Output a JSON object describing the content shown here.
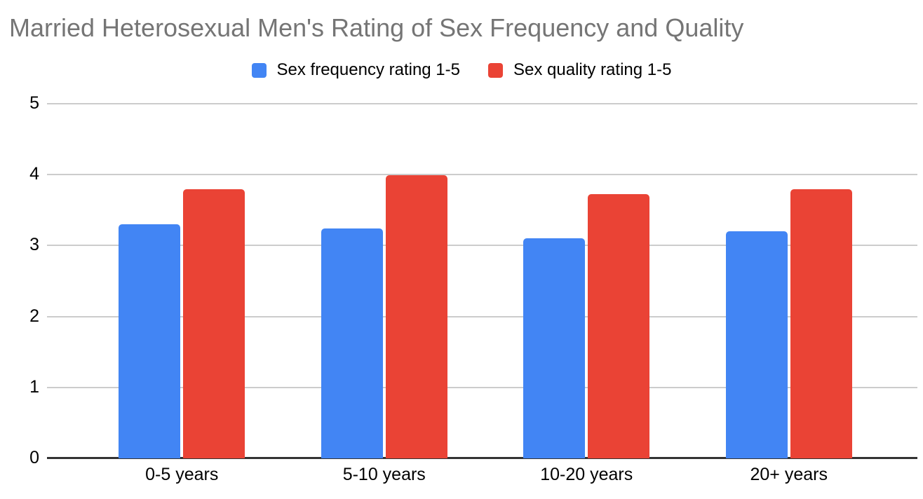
{
  "title": "Married Heterosexual Men's Rating of Sex Frequency and Quality",
  "title_color": "#757575",
  "chart_data": {
    "type": "bar",
    "categories": [
      "0-5 years",
      "5-10 years",
      "10-20 years",
      "20+ years"
    ],
    "series": [
      {
        "name": "Sex frequency rating 1-5",
        "color": "#4285F4",
        "values": [
          3.3,
          3.24,
          3.1,
          3.2
        ]
      },
      {
        "name": "Sex quality rating 1-5",
        "color": "#EA4335",
        "values": [
          3.79,
          3.99,
          3.73,
          3.79
        ]
      }
    ],
    "title": "Married Heterosexual Men's Rating of Sex Frequency and Quality",
    "xlabel": "",
    "ylabel": "",
    "ylim": [
      0,
      5
    ],
    "yticks": [
      0,
      1,
      2,
      3,
      4,
      5
    ],
    "grid": true,
    "legend_position": "top",
    "gridline_color": "#cccccc",
    "axis_line_color": "#333333",
    "tick_label_color": "#000000",
    "background_color": "#ffffff"
  }
}
